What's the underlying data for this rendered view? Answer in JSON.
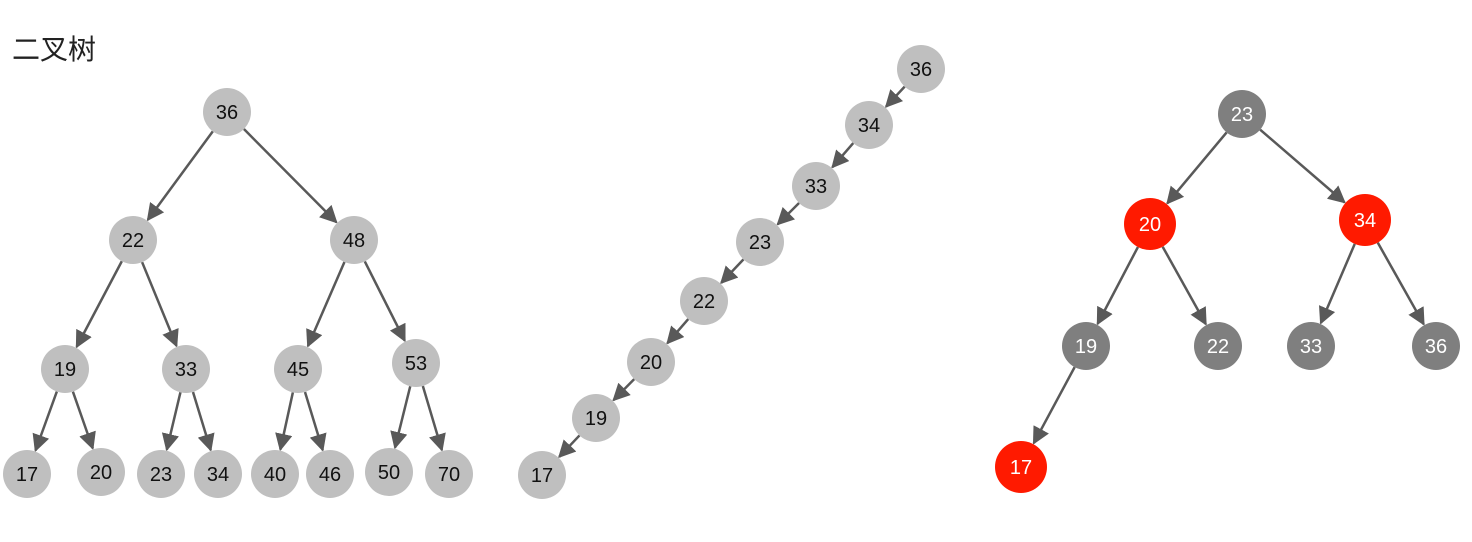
{
  "title": "二叉树",
  "colors": {
    "light_node": "#bfbfbf",
    "dark_node": "#7f7f7f",
    "red_node": "#ff1a00",
    "edge": "#595959",
    "dark_text": "#111111",
    "light_text": "#ffffff"
  },
  "trees": [
    {
      "id": "balanced-tree",
      "nodes": [
        {
          "id": "a36",
          "label": "36",
          "color": "light"
        },
        {
          "id": "a22",
          "label": "22",
          "color": "light"
        },
        {
          "id": "a48",
          "label": "48",
          "color": "light"
        },
        {
          "id": "a19",
          "label": "19",
          "color": "light"
        },
        {
          "id": "a33",
          "label": "33",
          "color": "light"
        },
        {
          "id": "a45",
          "label": "45",
          "color": "light"
        },
        {
          "id": "a53",
          "label": "53",
          "color": "light"
        },
        {
          "id": "a17",
          "label": "17",
          "color": "light"
        },
        {
          "id": "a20",
          "label": "20",
          "color": "light"
        },
        {
          "id": "a23",
          "label": "23",
          "color": "light"
        },
        {
          "id": "a34",
          "label": "34",
          "color": "light"
        },
        {
          "id": "a40",
          "label": "40",
          "color": "light"
        },
        {
          "id": "a46",
          "label": "46",
          "color": "light"
        },
        {
          "id": "a50",
          "label": "50",
          "color": "light"
        },
        {
          "id": "a70",
          "label": "70",
          "color": "light"
        }
      ],
      "edges": [
        [
          "a36",
          "a22"
        ],
        [
          "a36",
          "a48"
        ],
        [
          "a22",
          "a19"
        ],
        [
          "a22",
          "a33"
        ],
        [
          "a48",
          "a45"
        ],
        [
          "a48",
          "a53"
        ],
        [
          "a19",
          "a17"
        ],
        [
          "a19",
          "a20"
        ],
        [
          "a33",
          "a23"
        ],
        [
          "a33",
          "a34"
        ],
        [
          "a45",
          "a40"
        ],
        [
          "a45",
          "a46"
        ],
        [
          "a53",
          "a50"
        ],
        [
          "a53",
          "a70"
        ]
      ]
    },
    {
      "id": "degenerate-tree",
      "nodes": [
        {
          "id": "b36",
          "label": "36",
          "color": "light"
        },
        {
          "id": "b34",
          "label": "34",
          "color": "light"
        },
        {
          "id": "b33",
          "label": "33",
          "color": "light"
        },
        {
          "id": "b23",
          "label": "23",
          "color": "light"
        },
        {
          "id": "b22",
          "label": "22",
          "color": "light"
        },
        {
          "id": "b20",
          "label": "20",
          "color": "light"
        },
        {
          "id": "b19",
          "label": "19",
          "color": "light"
        },
        {
          "id": "b17",
          "label": "17",
          "color": "light"
        }
      ],
      "edges": [
        [
          "b36",
          "b34"
        ],
        [
          "b34",
          "b33"
        ],
        [
          "b33",
          "b23"
        ],
        [
          "b23",
          "b22"
        ],
        [
          "b22",
          "b20"
        ],
        [
          "b20",
          "b19"
        ],
        [
          "b19",
          "b17"
        ]
      ]
    },
    {
      "id": "red-black-tree",
      "nodes": [
        {
          "id": "c23",
          "label": "23",
          "color": "dark"
        },
        {
          "id": "c20",
          "label": "20",
          "color": "red"
        },
        {
          "id": "c34",
          "label": "34",
          "color": "red"
        },
        {
          "id": "c19",
          "label": "19",
          "color": "dark"
        },
        {
          "id": "c22",
          "label": "22",
          "color": "dark"
        },
        {
          "id": "c33",
          "label": "33",
          "color": "dark"
        },
        {
          "id": "c36",
          "label": "36",
          "color": "dark"
        },
        {
          "id": "c17",
          "label": "17",
          "color": "red"
        }
      ],
      "edges": [
        [
          "c23",
          "c20"
        ],
        [
          "c23",
          "c34"
        ],
        [
          "c20",
          "c19"
        ],
        [
          "c20",
          "c22"
        ],
        [
          "c34",
          "c33"
        ],
        [
          "c34",
          "c36"
        ],
        [
          "c19",
          "c17"
        ]
      ]
    }
  ]
}
